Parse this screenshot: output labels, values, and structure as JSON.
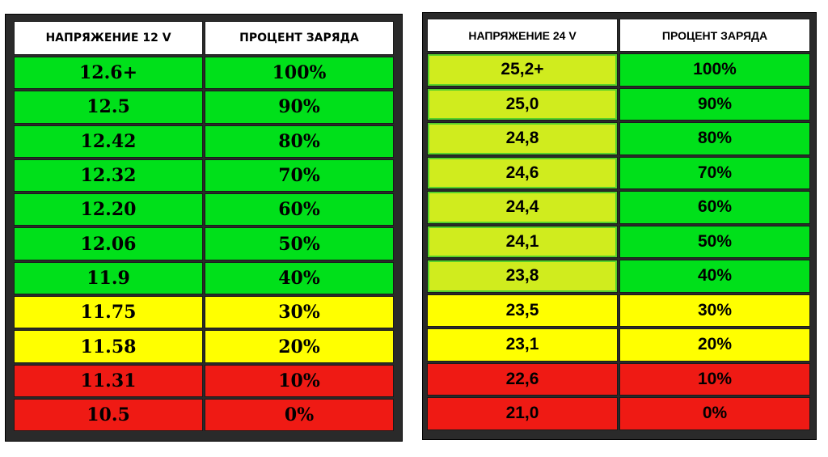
{
  "table_12v": {
    "header_voltage": "НАПРЯЖЕНИЕ 12 V",
    "header_charge": "ПРОЦЕНТ ЗАРЯДА",
    "rows": [
      {
        "voltage": "12.6+",
        "charge": "100%",
        "color": "#00e01a"
      },
      {
        "voltage": "12.5",
        "charge": "90%",
        "color": "#00e01a"
      },
      {
        "voltage": "12.42",
        "charge": "80%",
        "color": "#00e01a"
      },
      {
        "voltage": "12.32",
        "charge": "70%",
        "color": "#00e01a"
      },
      {
        "voltage": "12.20",
        "charge": "60%",
        "color": "#00e01a"
      },
      {
        "voltage": "12.06",
        "charge": "50%",
        "color": "#00e01a"
      },
      {
        "voltage": "11.9",
        "charge": "40%",
        "color": "#00e01a"
      },
      {
        "voltage": "11.75",
        "charge": "30%",
        "color": "#ffff00"
      },
      {
        "voltage": "11.58",
        "charge": "20%",
        "color": "#ffff00"
      },
      {
        "voltage": "11.31",
        "charge": "10%",
        "color": "#ef1a14"
      },
      {
        "voltage": "10.5",
        "charge": "0%",
        "color": "#ef1a14"
      }
    ]
  },
  "table_24v": {
    "header_voltage": "НАПРЯЖЕНИЕ 24 V",
    "header_charge": "ПРОЦЕНТ ЗАРЯДА",
    "rows": [
      {
        "voltage": "25,2+",
        "charge": "100%",
        "voltage_color": "#d0ec1e",
        "charge_color": "#00e01a"
      },
      {
        "voltage": "25,0",
        "charge": "90%",
        "voltage_color": "#d0ec1e",
        "charge_color": "#00e01a"
      },
      {
        "voltage": "24,8",
        "charge": "80%",
        "voltage_color": "#d0ec1e",
        "charge_color": "#00e01a"
      },
      {
        "voltage": "24,6",
        "charge": "70%",
        "voltage_color": "#d0ec1e",
        "charge_color": "#00e01a"
      },
      {
        "voltage": "24,4",
        "charge": "60%",
        "voltage_color": "#d0ec1e",
        "charge_color": "#00e01a"
      },
      {
        "voltage": "24,1",
        "charge": "50%",
        "voltage_color": "#d0ec1e",
        "charge_color": "#00e01a"
      },
      {
        "voltage": "23,8",
        "charge": "40%",
        "voltage_color": "#d0ec1e",
        "charge_color": "#00e01a"
      },
      {
        "voltage": "23,5",
        "charge": "30%",
        "voltage_color": "#ffff00",
        "charge_color": "#ffff00"
      },
      {
        "voltage": "23,1",
        "charge": "20%",
        "voltage_color": "#ffff00",
        "charge_color": "#ffff00"
      },
      {
        "voltage": "22,6",
        "charge": "10%",
        "voltage_color": "#ef1a14",
        "charge_color": "#ef1a14"
      },
      {
        "voltage": "21,0",
        "charge": "0%",
        "voltage_color": "#ef1a14",
        "charge_color": "#ef1a14"
      }
    ]
  }
}
